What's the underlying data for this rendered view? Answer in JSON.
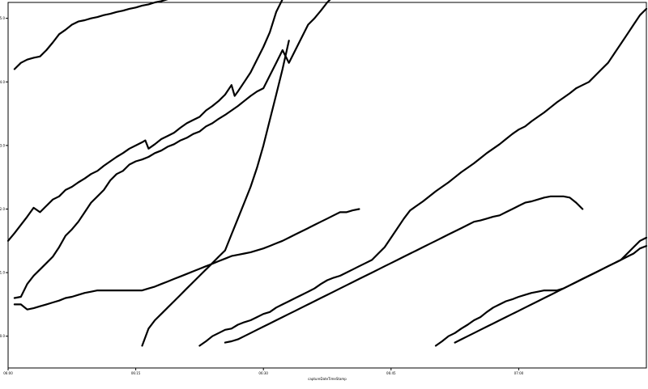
{
  "chart_data": {
    "type": "line",
    "title": "",
    "xlabel": "captureDateTimeStamp",
    "ylabel": "",
    "xlim": [
      0,
      100
    ],
    "ylim": [
      1369.5,
      1375.25
    ],
    "x_ticks": [
      {
        "value": 0,
        "label": "06:00"
      },
      {
        "value": 20,
        "label": "06:15"
      },
      {
        "value": 40,
        "label": "06:30"
      },
      {
        "value": 60,
        "label": "06:45"
      },
      {
        "value": 80,
        "label": "07:00"
      }
    ],
    "y_ticks": [
      {
        "value": 1370,
        "label": "1370.0"
      },
      {
        "value": 1371,
        "label": "1371.0"
      },
      {
        "value": 1372,
        "label": "1372.0"
      },
      {
        "value": 1373,
        "label": "1373.0"
      },
      {
        "value": 1374,
        "label": "1374.0"
      },
      {
        "value": 1375,
        "label": "1375.0"
      }
    ],
    "grid": false,
    "legend": "none",
    "series_color": "#000000",
    "series": [
      {
        "x": [
          1,
          2,
          3,
          4,
          5,
          6,
          7,
          8,
          9,
          10,
          11,
          12,
          13,
          14,
          15,
          16,
          17,
          18,
          19,
          20,
          21,
          22,
          23,
          24,
          25,
          26,
          27
        ],
        "y": [
          1374.2,
          1374.3,
          1374.35,
          1374.38,
          1374.4,
          1374.5,
          1374.62,
          1374.75,
          1374.82,
          1374.9,
          1374.95,
          1374.97,
          1375.0,
          1375.02,
          1375.05,
          1375.07,
          1375.1,
          1375.12,
          1375.15,
          1375.17,
          1375.2,
          1375.22,
          1375.25,
          1375.27,
          1375.3,
          1375.33,
          1375.35
        ]
      },
      {
        "x": [
          0,
          1,
          2,
          3,
          4,
          5,
          6,
          7,
          8,
          9,
          10,
          11,
          12,
          13,
          14,
          15,
          16,
          17,
          18,
          19,
          20,
          21,
          21.5,
          22,
          23,
          24,
          25,
          26,
          27,
          28,
          29,
          30,
          31,
          32,
          33,
          34,
          35,
          35.5,
          36,
          37,
          38,
          39,
          40,
          41,
          42,
          43
        ],
        "y": [
          1371.5,
          1371.62,
          1371.75,
          1371.88,
          1372.02,
          1371.95,
          1372.05,
          1372.15,
          1372.2,
          1372.3,
          1372.35,
          1372.42,
          1372.48,
          1372.55,
          1372.6,
          1372.68,
          1372.75,
          1372.82,
          1372.88,
          1372.95,
          1373.0,
          1373.05,
          1373.08,
          1372.95,
          1373.02,
          1373.1,
          1373.15,
          1373.2,
          1373.28,
          1373.35,
          1373.4,
          1373.45,
          1373.55,
          1373.62,
          1373.7,
          1373.8,
          1373.95,
          1373.78,
          1373.85,
          1374.0,
          1374.15,
          1374.35,
          1374.55,
          1374.78,
          1375.1,
          1375.3
        ]
      },
      {
        "x": [
          1,
          2,
          3,
          4,
          5,
          6,
          7,
          8,
          9,
          10,
          11,
          12,
          13,
          14,
          15,
          16,
          17,
          18,
          19,
          20,
          21,
          22,
          23,
          24,
          25,
          26,
          27,
          28,
          29,
          30,
          31,
          32,
          33,
          34,
          35,
          36,
          37,
          38,
          39,
          40,
          41,
          42,
          43,
          44,
          45,
          46,
          47,
          48,
          49,
          50,
          51,
          52
        ],
        "y": [
          1370.6,
          1370.62,
          1370.82,
          1370.95,
          1371.05,
          1371.15,
          1371.25,
          1371.4,
          1371.58,
          1371.68,
          1371.8,
          1371.95,
          1372.1,
          1372.2,
          1372.3,
          1372.45,
          1372.55,
          1372.6,
          1372.7,
          1372.75,
          1372.78,
          1372.82,
          1372.88,
          1372.92,
          1372.98,
          1373.02,
          1373.08,
          1373.12,
          1373.18,
          1373.22,
          1373.3,
          1373.35,
          1373.42,
          1373.48,
          1373.55,
          1373.62,
          1373.7,
          1373.78,
          1373.85,
          1373.9,
          1374.1,
          1374.3,
          1374.5,
          1374.3,
          1374.5,
          1374.7,
          1374.9,
          1375.0,
          1375.12,
          1375.25,
          1375.35,
          1375.4
        ]
      },
      {
        "x": [
          1,
          2,
          3,
          4,
          5,
          6,
          7,
          8,
          9,
          10,
          11,
          12,
          13,
          14,
          15,
          16,
          17,
          18,
          19,
          20,
          21,
          22,
          23,
          24,
          25,
          26,
          27,
          28,
          29,
          30,
          31,
          32,
          33,
          34,
          35,
          36,
          37,
          38,
          39,
          40,
          41,
          42,
          43,
          44,
          45,
          46,
          47,
          48,
          49,
          50,
          51,
          52,
          53,
          54,
          55
        ],
        "y": [
          1370.5,
          1370.5,
          1370.42,
          1370.44,
          1370.47,
          1370.5,
          1370.53,
          1370.56,
          1370.6,
          1370.62,
          1370.65,
          1370.68,
          1370.7,
          1370.72,
          1370.72,
          1370.72,
          1370.72,
          1370.72,
          1370.72,
          1370.72,
          1370.72,
          1370.75,
          1370.78,
          1370.82,
          1370.86,
          1370.9,
          1370.94,
          1370.98,
          1371.02,
          1371.06,
          1371.1,
          1371.14,
          1371.18,
          1371.22,
          1371.26,
          1371.28,
          1371.3,
          1371.32,
          1371.35,
          1371.38,
          1371.42,
          1371.46,
          1371.5,
          1371.55,
          1371.6,
          1371.65,
          1371.7,
          1371.75,
          1371.8,
          1371.85,
          1371.9,
          1371.95,
          1371.95,
          1371.98,
          1372.0
        ]
      },
      {
        "x": [
          21,
          22,
          23,
          24,
          25,
          26,
          27,
          28,
          29,
          30,
          31,
          32,
          33,
          34,
          35,
          36,
          37,
          38,
          39,
          40,
          41,
          42,
          43,
          44
        ],
        "y": [
          1369.85,
          1370.12,
          1370.25,
          1370.35,
          1370.45,
          1370.55,
          1370.65,
          1370.75,
          1370.85,
          1370.95,
          1371.05,
          1371.15,
          1371.25,
          1371.35,
          1371.6,
          1371.85,
          1372.1,
          1372.35,
          1372.65,
          1373.0,
          1373.4,
          1373.8,
          1374.2,
          1374.65
        ]
      },
      {
        "x": [
          30,
          31,
          32,
          33,
          34,
          35,
          36,
          37,
          38,
          39,
          40,
          41,
          42,
          43,
          44,
          45,
          46,
          47,
          48,
          49,
          50,
          51,
          52,
          53,
          54,
          55,
          56,
          57,
          58,
          59,
          60,
          61,
          62,
          63,
          64,
          65,
          66,
          67,
          68,
          69,
          70,
          71,
          72,
          73,
          74,
          75,
          76,
          77,
          78,
          79,
          80,
          81,
          82,
          83,
          84,
          85,
          86,
          87,
          88,
          89,
          90,
          91,
          92,
          93,
          94,
          95,
          96,
          97,
          98,
          99,
          100
        ],
        "y": [
          1369.85,
          1369.92,
          1370.0,
          1370.05,
          1370.1,
          1370.12,
          1370.18,
          1370.22,
          1370.25,
          1370.3,
          1370.35,
          1370.38,
          1370.45,
          1370.5,
          1370.55,
          1370.6,
          1370.65,
          1370.7,
          1370.75,
          1370.82,
          1370.88,
          1370.92,
          1370.95,
          1371.0,
          1371.05,
          1371.1,
          1371.15,
          1371.2,
          1371.3,
          1371.4,
          1371.55,
          1371.7,
          1371.85,
          1371.98,
          1372.05,
          1372.12,
          1372.2,
          1372.28,
          1372.35,
          1372.42,
          1372.5,
          1372.58,
          1372.65,
          1372.72,
          1372.8,
          1372.88,
          1372.95,
          1373.02,
          1373.1,
          1373.18,
          1373.25,
          1373.3,
          1373.38,
          1373.45,
          1373.52,
          1373.6,
          1373.68,
          1373.75,
          1373.82,
          1373.9,
          1373.95,
          1374.0,
          1374.1,
          1374.2,
          1374.3,
          1374.45,
          1374.6,
          1374.75,
          1374.9,
          1375.05,
          1375.15
        ]
      },
      {
        "x": [
          34,
          35,
          36,
          37,
          38,
          39,
          40,
          41,
          42,
          43,
          44,
          45,
          46,
          47,
          48,
          49,
          50,
          51,
          52,
          53,
          54,
          55,
          56,
          57,
          58,
          59,
          60,
          61,
          62,
          63,
          64,
          65,
          66,
          67,
          68,
          69,
          70,
          71,
          72,
          73,
          74,
          75,
          76,
          77,
          78,
          79,
          80,
          81,
          82,
          83,
          84,
          85,
          86,
          87,
          88,
          89,
          90
        ],
        "y": [
          1369.9,
          1369.92,
          1369.95,
          1370.0,
          1370.05,
          1370.1,
          1370.15,
          1370.2,
          1370.25,
          1370.3,
          1370.35,
          1370.4,
          1370.45,
          1370.5,
          1370.55,
          1370.6,
          1370.65,
          1370.7,
          1370.75,
          1370.8,
          1370.85,
          1370.9,
          1370.95,
          1371.0,
          1371.05,
          1371.1,
          1371.15,
          1371.2,
          1371.25,
          1371.3,
          1371.35,
          1371.4,
          1371.45,
          1371.5,
          1371.55,
          1371.6,
          1371.65,
          1371.7,
          1371.75,
          1371.8,
          1371.82,
          1371.85,
          1371.88,
          1371.9,
          1371.95,
          1372.0,
          1372.05,
          1372.1,
          1372.12,
          1372.15,
          1372.18,
          1372.2,
          1372.2,
          1372.2,
          1372.18,
          1372.1,
          1372.0
        ]
      },
      {
        "x": [
          67,
          68,
          69,
          70,
          71,
          72,
          73,
          74,
          75,
          76,
          77,
          78,
          79,
          80,
          81,
          82,
          83,
          84,
          85,
          86,
          87,
          88,
          89,
          90,
          91,
          92,
          93,
          94,
          95,
          96,
          97,
          98,
          99,
          100
        ],
        "y": [
          1369.85,
          1369.92,
          1370.0,
          1370.05,
          1370.12,
          1370.18,
          1370.25,
          1370.3,
          1370.38,
          1370.45,
          1370.5,
          1370.55,
          1370.58,
          1370.62,
          1370.65,
          1370.68,
          1370.7,
          1370.72,
          1370.72,
          1370.72,
          1370.75,
          1370.8,
          1370.85,
          1370.9,
          1370.95,
          1371.0,
          1371.05,
          1371.1,
          1371.15,
          1371.2,
          1371.25,
          1371.3,
          1371.38,
          1371.42
        ]
      },
      {
        "x": [
          70,
          71,
          72,
          73,
          74,
          75,
          76,
          77,
          78,
          79,
          80,
          81,
          82,
          83,
          84,
          85,
          86,
          87,
          88,
          89,
          90,
          91,
          92,
          93,
          94,
          95,
          96,
          97,
          98,
          99,
          100
        ],
        "y": [
          1369.9,
          1369.95,
          1370.0,
          1370.05,
          1370.1,
          1370.15,
          1370.2,
          1370.25,
          1370.3,
          1370.35,
          1370.4,
          1370.45,
          1370.5,
          1370.55,
          1370.6,
          1370.65,
          1370.7,
          1370.75,
          1370.8,
          1370.85,
          1370.9,
          1370.95,
          1371.0,
          1371.05,
          1371.1,
          1371.15,
          1371.2,
          1371.3,
          1371.4,
          1371.5,
          1371.55
        ]
      }
    ]
  }
}
